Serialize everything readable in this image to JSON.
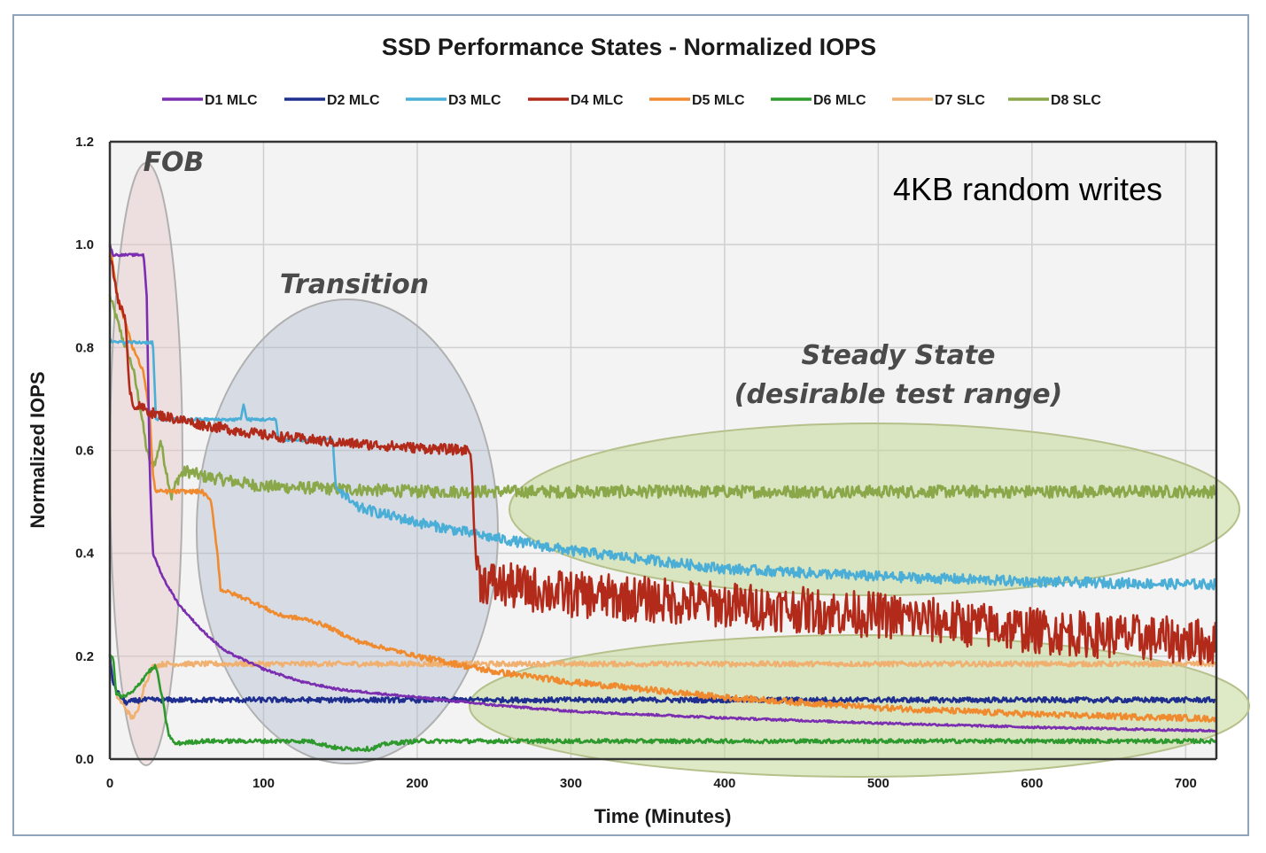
{
  "chart_data": {
    "type": "line",
    "title": "SSD Performance States - Normalized IOPS",
    "xlabel": "Time (Minutes)",
    "ylabel": "Normalized IOPS",
    "xlim": [
      0,
      720
    ],
    "ylim": [
      0,
      1.2
    ],
    "x_ticks": [
      "0",
      "100",
      "200",
      "300",
      "400",
      "500",
      "600",
      "700"
    ],
    "y_ticks": [
      "0.0",
      "0.2",
      "0.4",
      "0.6",
      "0.8",
      "1.0",
      "1.2"
    ],
    "grid": true,
    "legend_position": "top",
    "annotation": "4KB random writes",
    "zones": [
      {
        "label": "FOB"
      },
      {
        "label": "Transition"
      },
      {
        "label": "Steady State",
        "sublabel": "(desirable test range)"
      }
    ],
    "series": [
      {
        "name": "D1 MLC",
        "color": "#7b2fb0",
        "points": [
          [
            0,
            1.0
          ],
          [
            2,
            0.98
          ],
          [
            22,
            0.98
          ],
          [
            24,
            0.9
          ],
          [
            26,
            0.55
          ],
          [
            28,
            0.4
          ],
          [
            35,
            0.35
          ],
          [
            45,
            0.3
          ],
          [
            60,
            0.25
          ],
          [
            75,
            0.21
          ],
          [
            100,
            0.175
          ],
          [
            125,
            0.15
          ],
          [
            150,
            0.135
          ],
          [
            200,
            0.12
          ],
          [
            250,
            0.105
          ],
          [
            300,
            0.093
          ],
          [
            400,
            0.08
          ],
          [
            500,
            0.07
          ],
          [
            600,
            0.062
          ],
          [
            700,
            0.056
          ],
          [
            720,
            0.055
          ]
        ]
      },
      {
        "name": "D2 MLC",
        "color": "#1f2f8f",
        "points": [
          [
            0,
            0.2
          ],
          [
            2,
            0.15
          ],
          [
            5,
            0.13
          ],
          [
            10,
            0.11
          ],
          [
            20,
            0.115
          ],
          [
            720,
            0.115
          ]
        ]
      },
      {
        "name": "D3 MLC",
        "color": "#4aaed6",
        "points": [
          [
            0,
            0.82
          ],
          [
            2,
            0.81
          ],
          [
            28,
            0.81
          ],
          [
            30,
            0.66
          ],
          [
            85,
            0.66
          ],
          [
            87,
            0.69
          ],
          [
            89,
            0.66
          ],
          [
            108,
            0.66
          ],
          [
            110,
            0.62
          ],
          [
            145,
            0.62
          ],
          [
            147,
            0.53
          ],
          [
            150,
            0.52
          ],
          [
            160,
            0.49
          ],
          [
            200,
            0.46
          ],
          [
            250,
            0.43
          ],
          [
            300,
            0.405
          ],
          [
            400,
            0.37
          ],
          [
            500,
            0.355
          ],
          [
            600,
            0.345
          ],
          [
            700,
            0.34
          ],
          [
            720,
            0.34
          ]
        ]
      },
      {
        "name": "D4 MLC",
        "color": "#b22a1a",
        "points": [
          [
            0,
            0.98
          ],
          [
            5,
            0.9
          ],
          [
            10,
            0.85
          ],
          [
            13,
            0.72
          ],
          [
            15,
            0.69
          ],
          [
            30,
            0.67
          ],
          [
            60,
            0.65
          ],
          [
            100,
            0.63
          ],
          [
            150,
            0.615
          ],
          [
            200,
            0.605
          ],
          [
            235,
            0.6
          ],
          [
            237,
            0.45
          ],
          [
            240,
            0.35
          ],
          [
            250,
            0.34
          ],
          [
            300,
            0.32
          ],
          [
            350,
            0.31
          ],
          [
            400,
            0.3
          ],
          [
            450,
            0.29
          ],
          [
            500,
            0.28
          ],
          [
            550,
            0.265
          ],
          [
            600,
            0.25
          ],
          [
            650,
            0.24
          ],
          [
            700,
            0.23
          ],
          [
            720,
            0.225
          ]
        ]
      },
      {
        "name": "D5 MLC",
        "color": "#ef8a2e",
        "points": [
          [
            0,
            1.0
          ],
          [
            5,
            0.9
          ],
          [
            15,
            0.8
          ],
          [
            22,
            0.75
          ],
          [
            26,
            0.67
          ],
          [
            28,
            0.55
          ],
          [
            30,
            0.52
          ],
          [
            50,
            0.52
          ],
          [
            60,
            0.52
          ],
          [
            66,
            0.5
          ],
          [
            70,
            0.4
          ],
          [
            72,
            0.33
          ],
          [
            90,
            0.31
          ],
          [
            110,
            0.28
          ],
          [
            130,
            0.27
          ],
          [
            140,
            0.26
          ],
          [
            160,
            0.23
          ],
          [
            200,
            0.2
          ],
          [
            250,
            0.17
          ],
          [
            300,
            0.15
          ],
          [
            400,
            0.12
          ],
          [
            500,
            0.1
          ],
          [
            600,
            0.087
          ],
          [
            700,
            0.08
          ],
          [
            720,
            0.078
          ]
        ]
      },
      {
        "name": "D6 MLC",
        "color": "#2e9a2e",
        "points": [
          [
            0,
            0.2
          ],
          [
            2,
            0.2
          ],
          [
            4,
            0.13
          ],
          [
            8,
            0.12
          ],
          [
            15,
            0.13
          ],
          [
            20,
            0.15
          ],
          [
            25,
            0.17
          ],
          [
            30,
            0.18
          ],
          [
            34,
            0.12
          ],
          [
            38,
            0.05
          ],
          [
            42,
            0.03
          ],
          [
            60,
            0.035
          ],
          [
            100,
            0.035
          ],
          [
            130,
            0.035
          ],
          [
            150,
            0.02
          ],
          [
            170,
            0.02
          ],
          [
            180,
            0.03
          ],
          [
            200,
            0.035
          ],
          [
            720,
            0.035
          ]
        ]
      },
      {
        "name": "D7 SLC",
        "color": "#f0b070",
        "points": [
          [
            0,
            0.18
          ],
          [
            5,
            0.12
          ],
          [
            10,
            0.1
          ],
          [
            14,
            0.08
          ],
          [
            18,
            0.09
          ],
          [
            22,
            0.14
          ],
          [
            28,
            0.18
          ],
          [
            35,
            0.185
          ],
          [
            720,
            0.185
          ]
        ]
      },
      {
        "name": "D8 SLC",
        "color": "#8aa84a",
        "points": [
          [
            0,
            0.9
          ],
          [
            3,
            0.87
          ],
          [
            8,
            0.82
          ],
          [
            15,
            0.76
          ],
          [
            20,
            0.68
          ],
          [
            24,
            0.6
          ],
          [
            27,
            0.57
          ],
          [
            30,
            0.58
          ],
          [
            33,
            0.62
          ],
          [
            36,
            0.57
          ],
          [
            40,
            0.51
          ],
          [
            45,
            0.55
          ],
          [
            50,
            0.56
          ],
          [
            60,
            0.55
          ],
          [
            80,
            0.54
          ],
          [
            100,
            0.53
          ],
          [
            150,
            0.525
          ],
          [
            200,
            0.52
          ],
          [
            720,
            0.52
          ]
        ]
      }
    ]
  }
}
